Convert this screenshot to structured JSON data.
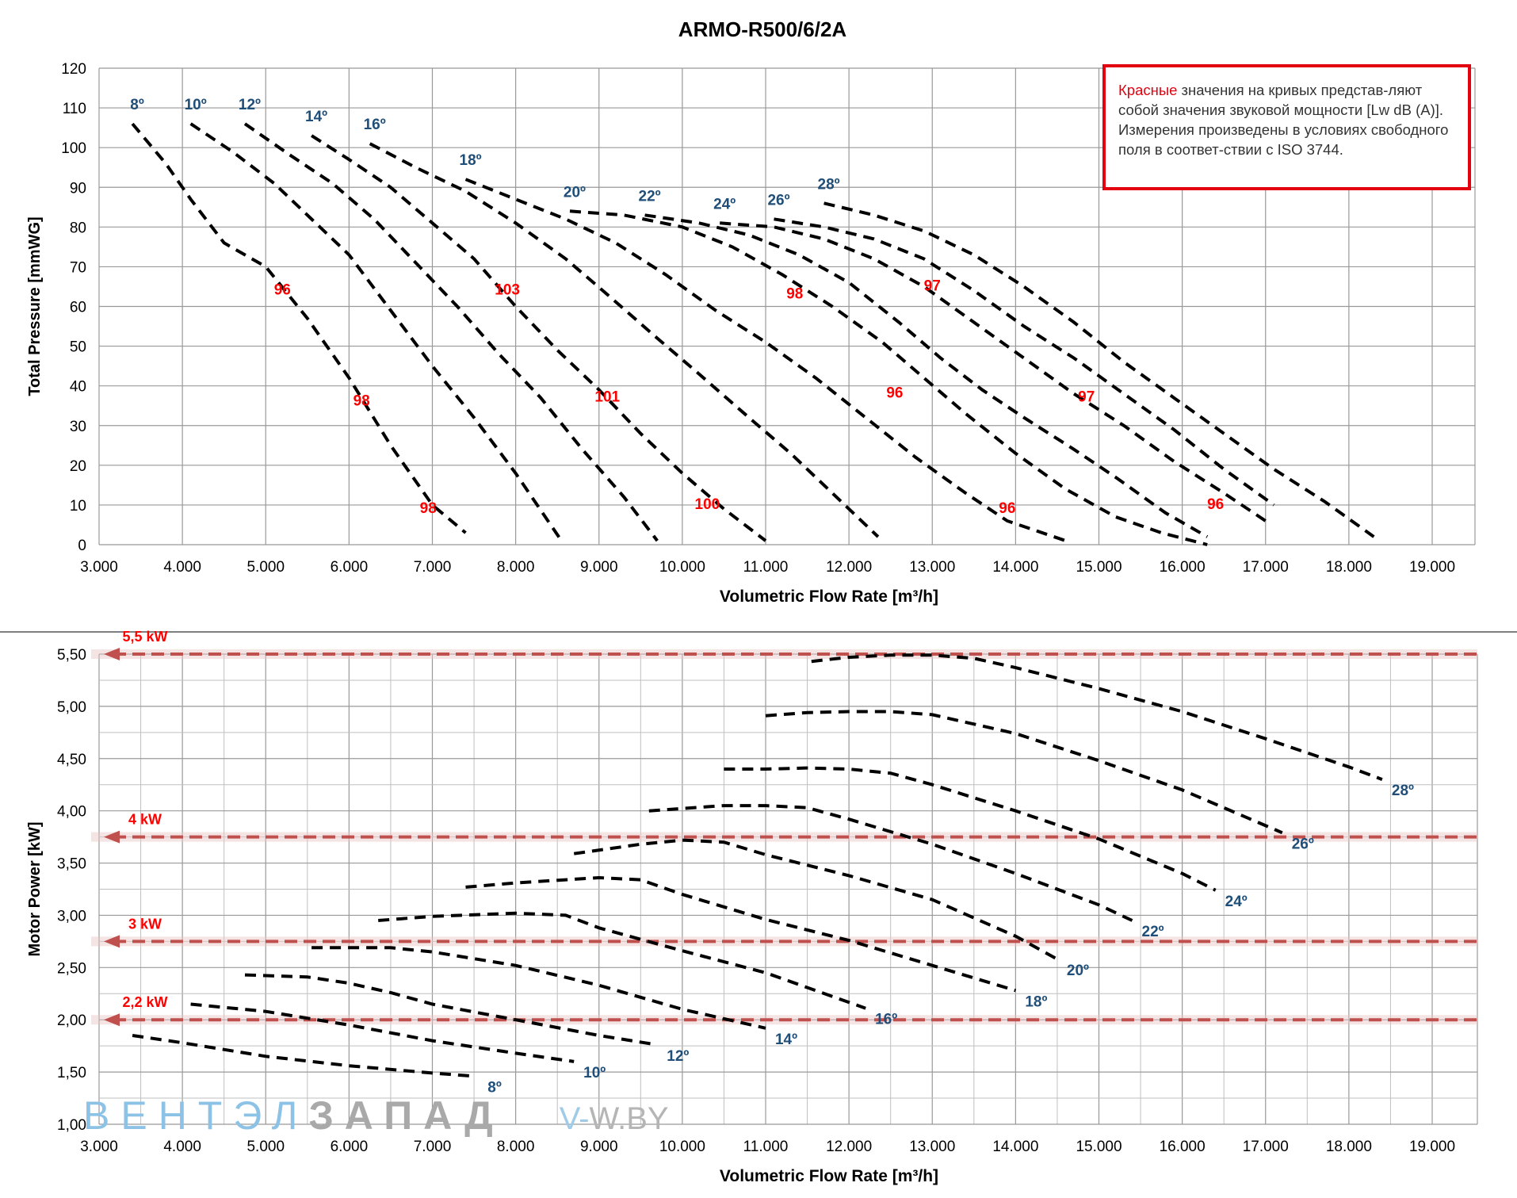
{
  "title": "ARMO-R500/6/2A",
  "colors": {
    "grid": "#999999",
    "axis_text": "#000000",
    "curve": "#000000",
    "angle_label": "#1f4e79",
    "sound_label": "#ff0000",
    "power_line": "#c0504d",
    "power_label": "#ff0000",
    "note_border": "#e3000f"
  },
  "note": {
    "red_word": "Красные",
    "text": " значения на кривых представ-ляют собой значения звуковой мощности [Lw dB (A)]. Измерения произведены в условиях свободного поля в соответ-ствии с ISO 3744."
  },
  "watermark": {
    "part1": "ВЕНТЭЛ",
    "part2": "ЗАПАД",
    "part3": "V-",
    "part4": "W.BY"
  },
  "chart_data": [
    {
      "type": "line",
      "title": "ARMO-R500/6/2A",
      "xlabel": "Volumetric Flow Rate [m³/h]",
      "ylabel": "Total Pressure [mmWG]",
      "xlim": [
        3000,
        19500
      ],
      "ylim": [
        0,
        120
      ],
      "x_ticks": [
        "3.000",
        "4.000",
        "5.000",
        "6.000",
        "7.000",
        "8.000",
        "9.000",
        "10.000",
        "11.000",
        "12.000",
        "13.000",
        "14.000",
        "15.000",
        "16.000",
        "17.000",
        "18.000",
        "19.000"
      ],
      "y_ticks": [
        "0",
        "10",
        "20",
        "30",
        "40",
        "50",
        "60",
        "70",
        "80",
        "90",
        "100",
        "110",
        "120"
      ],
      "grid": true,
      "line_style": "dashed",
      "series": [
        {
          "name": "8º",
          "x": [
            3400,
            3800,
            4100,
            4500,
            5000,
            5500,
            6000,
            6500,
            7000,
            7400
          ],
          "y": [
            106,
            96,
            87,
            76,
            70,
            57,
            42,
            25,
            10,
            3
          ]
        },
        {
          "name": "10º",
          "x": [
            4100,
            4600,
            5100,
            5600,
            6000,
            6500,
            7000,
            7500,
            8000,
            8550
          ],
          "y": [
            106,
            99,
            91,
            81,
            73,
            59,
            45,
            32,
            18,
            1
          ]
        },
        {
          "name": "12º",
          "x": [
            4750,
            5300,
            5800,
            6300,
            6800,
            7300,
            7800,
            8300,
            8800,
            9300,
            9700
          ],
          "y": [
            106,
            98,
            91,
            82,
            71,
            60,
            48,
            37,
            24,
            12,
            1
          ]
        },
        {
          "name": "14º",
          "x": [
            5550,
            6000,
            6500,
            7000,
            7500,
            8000,
            8500,
            9000,
            9500,
            10000,
            10500,
            11000
          ],
          "y": [
            103,
            97,
            90,
            81,
            72,
            60,
            49,
            39,
            28,
            18,
            9,
            1
          ]
        },
        {
          "name": "16º",
          "x": [
            6250,
            6800,
            7400,
            8000,
            8600,
            9100,
            9700,
            10200,
            10800,
            11300,
            11800,
            12350
          ],
          "y": [
            101,
            95,
            89,
            81,
            72,
            63,
            52,
            43,
            32,
            23,
            13,
            2
          ]
        },
        {
          "name": "18º",
          "x": [
            7400,
            8000,
            8600,
            9200,
            9800,
            10400,
            11000,
            11600,
            12200,
            12800,
            13400,
            13900,
            14600
          ],
          "y": [
            92,
            87,
            82,
            76,
            68,
            59,
            51,
            42,
            32,
            22,
            13,
            6,
            1
          ]
        },
        {
          "name": "20º",
          "x": [
            8650,
            9300,
            10000,
            10600,
            11200,
            11800,
            12400,
            12900,
            13400,
            14000,
            14600,
            15200,
            15750,
            16300
          ],
          "y": [
            84,
            83,
            80,
            75,
            68,
            60,
            51,
            42,
            33,
            23,
            14,
            7,
            3,
            0
          ]
        },
        {
          "name": "22º",
          "x": [
            9550,
            10200,
            10800,
            11400,
            12000,
            12600,
            13100,
            13600,
            14100,
            14700,
            15200,
            15800,
            16300
          ],
          "y": [
            83,
            81,
            78,
            73,
            66,
            56,
            47,
            39,
            32,
            24,
            17,
            8,
            2
          ]
        },
        {
          "name": "24º",
          "x": [
            10450,
            11100,
            11700,
            12300,
            12900,
            13500,
            14100,
            14700,
            15300,
            15900,
            16500,
            17000
          ],
          "y": [
            81,
            80,
            77,
            72,
            65,
            56,
            47,
            38,
            30,
            21,
            13,
            6
          ]
        },
        {
          "name": "26º",
          "x": [
            11100,
            11700,
            12300,
            12900,
            13500,
            14100,
            14700,
            15300,
            15900,
            16500,
            17100
          ],
          "y": [
            82,
            80,
            77,
            72,
            64,
            55,
            47,
            38,
            29,
            19,
            10
          ]
        },
        {
          "name": "28º",
          "x": [
            11700,
            12300,
            12900,
            13500,
            14100,
            14700,
            15300,
            15900,
            16500,
            17100,
            17700,
            18300
          ],
          "y": [
            86,
            83,
            79,
            73,
            65,
            56,
            46,
            37,
            28,
            19,
            11,
            2
          ]
        }
      ],
      "annotations": [
        {
          "text": "96",
          "x": 5200,
          "y": 63
        },
        {
          "text": "98",
          "x": 6150,
          "y": 35
        },
        {
          "text": "98",
          "x": 6950,
          "y": 8
        },
        {
          "text": "103",
          "x": 7900,
          "y": 63
        },
        {
          "text": "101",
          "x": 9100,
          "y": 36
        },
        {
          "text": "100",
          "x": 10300,
          "y": 9
        },
        {
          "text": "98",
          "x": 11350,
          "y": 62
        },
        {
          "text": "96",
          "x": 12550,
          "y": 37
        },
        {
          "text": "96",
          "x": 13900,
          "y": 8
        },
        {
          "text": "97",
          "x": 13000,
          "y": 64
        },
        {
          "text": "97",
          "x": 14850,
          "y": 36
        },
        {
          "text": "96",
          "x": 16400,
          "y": 9
        }
      ]
    },
    {
      "type": "line",
      "xlabel": "Volumetric Flow Rate [m³/h]",
      "ylabel": "Motor Power [kW]",
      "xlim": [
        3000,
        19500
      ],
      "ylim": [
        1.0,
        5.5
      ],
      "x_ticks": [
        "3.000",
        "4.000",
        "5.000",
        "6.000",
        "7.000",
        "8.000",
        "9.000",
        "10.000",
        "11.000",
        "12.000",
        "13.000",
        "14.000",
        "15.000",
        "16.000",
        "17.000",
        "18.000",
        "19.000"
      ],
      "y_ticks": [
        "1,00",
        "1,50",
        "2,00",
        "2,50",
        "3,00",
        "3,50",
        "4,00",
        "4,50",
        "5,00",
        "5,50"
      ],
      "grid": true,
      "line_style": "dashed",
      "series": [
        {
          "name": "8º",
          "x": [
            3400,
            4000,
            5000,
            6000,
            7000,
            7500
          ],
          "y": [
            1.85,
            1.78,
            1.65,
            1.56,
            1.49,
            1.46
          ]
        },
        {
          "name": "10º",
          "x": [
            4100,
            5000,
            6000,
            7000,
            8000,
            8700
          ],
          "y": [
            2.15,
            2.08,
            1.95,
            1.8,
            1.68,
            1.6
          ]
        },
        {
          "name": "12º",
          "x": [
            4750,
            5500,
            6000,
            6500,
            7000,
            8000,
            9000,
            9700
          ],
          "y": [
            2.43,
            2.41,
            2.35,
            2.26,
            2.15,
            2.0,
            1.85,
            1.76
          ]
        },
        {
          "name": "14º",
          "x": [
            5550,
            6500,
            7000,
            8000,
            9000,
            10000,
            11000
          ],
          "y": [
            2.69,
            2.69,
            2.65,
            2.52,
            2.33,
            2.1,
            1.92
          ]
        },
        {
          "name": "16º",
          "x": [
            6350,
            7000,
            8000,
            8600,
            9000,
            10000,
            11000,
            12200
          ],
          "y": [
            2.95,
            2.99,
            3.02,
            3.0,
            2.88,
            2.66,
            2.45,
            2.11
          ]
        },
        {
          "name": "18º",
          "x": [
            7400,
            8000,
            9000,
            9500,
            10000,
            11000,
            12000,
            13000,
            14000
          ],
          "y": [
            3.27,
            3.31,
            3.36,
            3.34,
            3.2,
            2.96,
            2.76,
            2.52,
            2.28
          ]
        },
        {
          "name": "20º",
          "x": [
            8700,
            9500,
            10000,
            10500,
            11000,
            12000,
            13000,
            14000,
            14500
          ],
          "y": [
            3.59,
            3.68,
            3.72,
            3.7,
            3.58,
            3.38,
            3.15,
            2.8,
            2.58
          ]
        },
        {
          "name": "22º",
          "x": [
            9600,
            10500,
            11000,
            11500,
            12000,
            13000,
            14000,
            15000,
            15400
          ],
          "y": [
            4.0,
            4.05,
            4.05,
            4.03,
            3.92,
            3.68,
            3.4,
            3.1,
            2.95
          ]
        },
        {
          "name": "24º",
          "x": [
            10500,
            11000,
            11500,
            12000,
            12500,
            13000,
            14000,
            15000,
            16000,
            16400
          ],
          "y": [
            4.4,
            4.4,
            4.41,
            4.4,
            4.36,
            4.25,
            4.0,
            3.73,
            3.4,
            3.24
          ]
        },
        {
          "name": "26º",
          "x": [
            11000,
            11500,
            12000,
            12500,
            13000,
            14000,
            15000,
            16000,
            17200
          ],
          "y": [
            4.91,
            4.94,
            4.95,
            4.95,
            4.92,
            4.74,
            4.48,
            4.2,
            3.79
          ]
        },
        {
          "name": "28º",
          "x": [
            11550,
            12000,
            12500,
            13000,
            13500,
            14000,
            15000,
            16000,
            17000,
            18000,
            18400
          ],
          "y": [
            5.43,
            5.47,
            5.49,
            5.49,
            5.46,
            5.37,
            5.17,
            4.95,
            4.69,
            4.42,
            4.3
          ]
        }
      ],
      "power_limits": [
        {
          "label": "5,5 kW",
          "value": 5.5
        },
        {
          "label": "4 kW",
          "value": 3.75
        },
        {
          "label": "3 kW",
          "value": 2.75
        },
        {
          "label": "2,2 kW",
          "value": 2.0
        }
      ]
    }
  ]
}
